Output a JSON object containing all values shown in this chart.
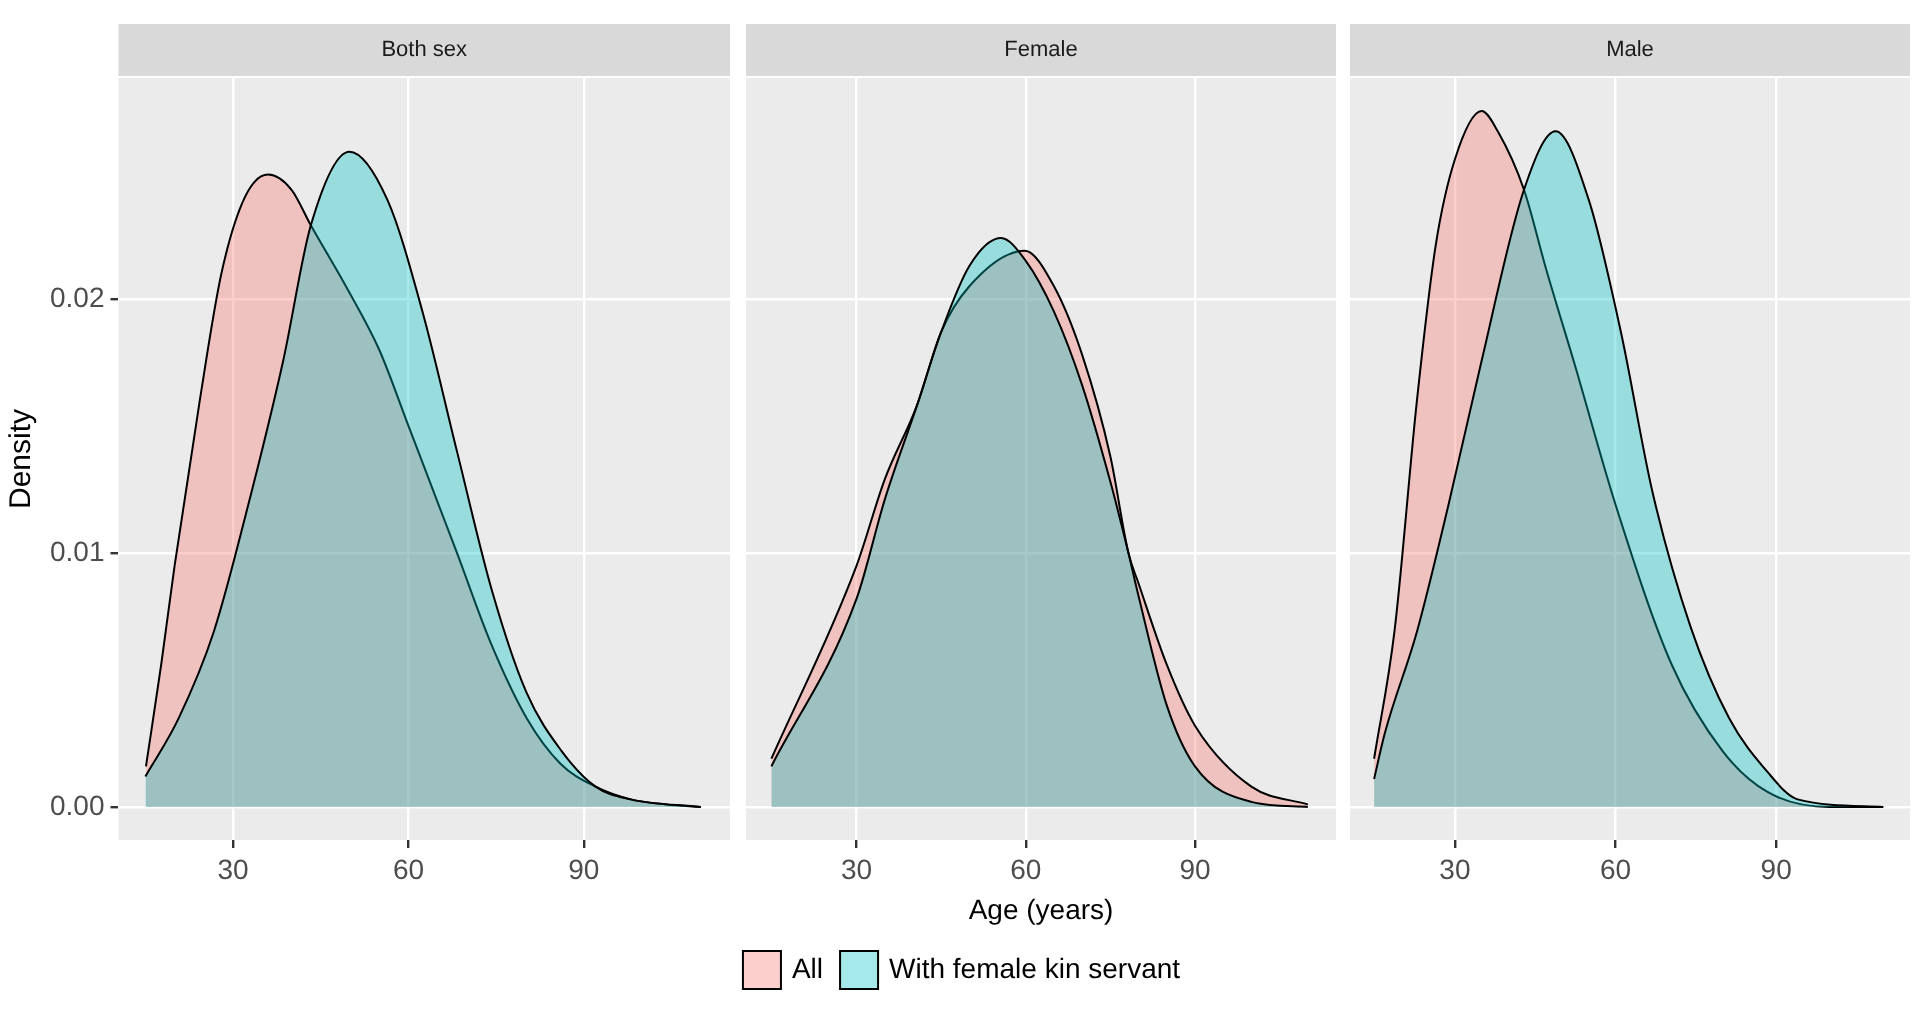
{
  "chart_data": [
    {
      "type": "area",
      "title": "Both sex",
      "ylabel": "Density",
      "xlim": [
        10.4,
        115
      ],
      "ylim": [
        -0.0013,
        0.0287
      ],
      "xticks": [
        30,
        60,
        90
      ],
      "yticks": [
        {
          "value": 0,
          "label": "0.00"
        },
        {
          "value": 0.01,
          "label": "0.01"
        },
        {
          "value": 0.02,
          "label": "0.02"
        }
      ],
      "grid": true,
      "legend": false,
      "marker": "none",
      "series": [
        {
          "color": "#f8766d",
          "x": [
            15.1,
            17.7,
            20,
            24.3,
            28,
            32,
            36,
            40,
            43.3,
            49.3,
            55,
            60,
            68.3,
            74,
            80.2,
            86,
            92,
            98,
            104,
            110
          ],
          "values": [
            0.0016,
            0.0056,
            0.0095,
            0.016,
            0.021,
            0.024,
            0.0249,
            0.0243,
            0.0229,
            0.0205,
            0.018,
            0.015,
            0.01,
            0.0065,
            0.0035,
            0.0017,
            0.0008,
            0.0003,
            0.0001,
            0
          ]
        },
        {
          "color": "#00bfc4",
          "x": [
            15,
            20.7,
            26.7,
            32.6,
            38.6,
            43.3,
            49.9,
            56.4,
            62.4,
            68.3,
            74.3,
            80.2,
            86.2,
            92,
            98,
            110
          ],
          "values": [
            0.0012,
            0.0035,
            0.0069,
            0.0119,
            0.0176,
            0.0229,
            0.0258,
            0.0239,
            0.0195,
            0.014,
            0.0085,
            0.0045,
            0.0022,
            0.0008,
            0.0003,
            0
          ]
        }
      ]
    },
    {
      "type": "area",
      "title": "Female",
      "xlabel": "Age (years)",
      "xlim": [
        10.4,
        115
      ],
      "ylim": [
        -0.0013,
        0.0287
      ],
      "xticks": [
        30,
        60,
        90
      ],
      "yticks": [
        0,
        0.01,
        0.02
      ],
      "tick_labels": "x",
      "grid": true,
      "legend": "bottom",
      "marker": "none",
      "series": [
        {
          "name": "All",
          "color": "#f8766d",
          "x": [
            14.9,
            30,
            35,
            40.7,
            45,
            50,
            59.8,
            65,
            70,
            75,
            78.2,
            80,
            85,
            90,
            100,
            110
          ],
          "values": [
            0.0019,
            0.0095,
            0.0129,
            0.0158,
            0.0187,
            0.0205,
            0.0219,
            0.0205,
            0.0178,
            0.0138,
            0.01,
            0.0088,
            0.0056,
            0.0032,
            0.0008,
            0.0001
          ]
        },
        {
          "name": "With female kin servant",
          "color": "#00bfc4",
          "x": [
            14.9,
            30,
            35,
            40.7,
            45,
            50,
            55.6,
            60,
            65,
            70,
            75,
            78.2,
            80,
            85,
            90,
            100,
            110
          ],
          "values": [
            0.0016,
            0.0082,
            0.0121,
            0.0158,
            0.0187,
            0.0213,
            0.0224,
            0.0215,
            0.0195,
            0.0166,
            0.0128,
            0.01,
            0.0083,
            0.004,
            0.0016,
            0.0002,
            0
          ]
        }
      ]
    },
    {
      "type": "area",
      "title": "Male",
      "xlim": [
        10.4,
        115
      ],
      "ylim": [
        -0.0013,
        0.0287
      ],
      "xticks": [
        30,
        60,
        90
      ],
      "yticks": [
        0,
        0.01,
        0.02
      ],
      "tick_labels": "x",
      "grid": true,
      "legend": false,
      "marker": "none",
      "series": [
        {
          "color": "#f8766d",
          "x": [
            14.9,
            18.7,
            22.9,
            26.4,
            30,
            35,
            38,
            42.9,
            47,
            52.4,
            60,
            70.5,
            80,
            88.3,
            100,
            110
          ],
          "values": [
            0.0019,
            0.0069,
            0.016,
            0.0221,
            0.0255,
            0.0274,
            0.0266,
            0.0243,
            0.0212,
            0.0174,
            0.0119,
            0.0056,
            0.0022,
            0.0006,
            0,
            0
          ]
        },
        {
          "color": "#00bfc4",
          "x": [
            14.9,
            16.9,
            22.9,
            28.8,
            34.8,
            42.9,
            48.8,
            55,
            61,
            66.9,
            74,
            81.2,
            88.3,
            94,
            110
          ],
          "values": [
            0.0011,
            0.0029,
            0.0069,
            0.0119,
            0.0174,
            0.0243,
            0.0266,
            0.0239,
            0.0187,
            0.0124,
            0.0071,
            0.0035,
            0.0014,
            0.0003,
            0
          ]
        }
      ]
    }
  ]
}
